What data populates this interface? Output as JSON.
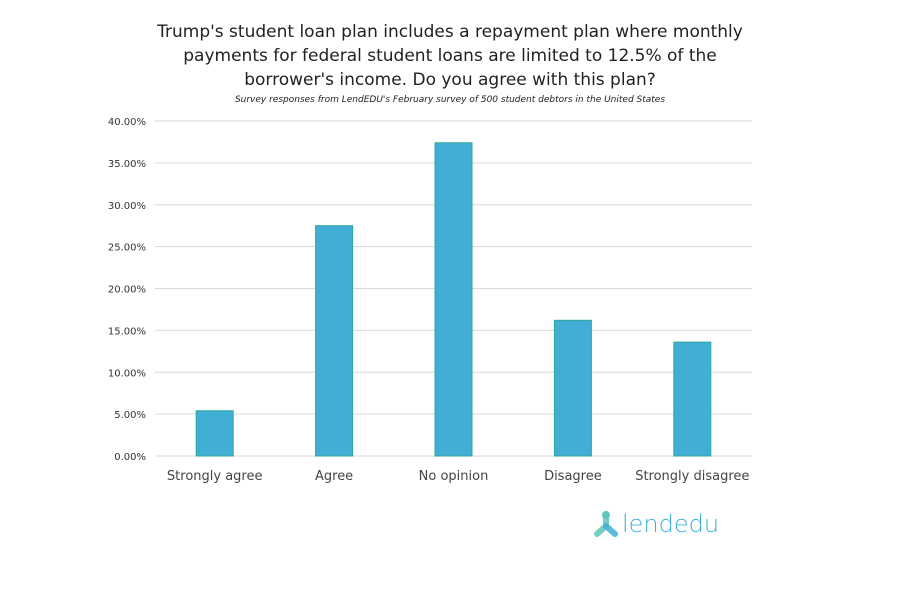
{
  "chart_data": {
    "type": "bar",
    "title": "Trump's student loan plan includes a repayment plan where monthly payments for federal student loans are limited to 12.5% of the borrower's income. Do you agree with this plan?",
    "subtitle": "Survey responses from LendEDU's February survey of 500 student debtors in the United States",
    "categories": [
      "Strongly agree",
      "Agree",
      "No opinion",
      "Disagree",
      "Strongly disagree"
    ],
    "values": [
      5.4,
      27.5,
      37.4,
      16.2,
      13.6
    ],
    "ylim": [
      0,
      40
    ],
    "yticks": [
      "0.00%",
      "5.00%",
      "10.00%",
      "15.00%",
      "20.00%",
      "25.00%",
      "30.00%",
      "35.00%",
      "40.00%"
    ],
    "grid": true,
    "xlabel": "",
    "ylabel": "",
    "bar_color": "#41aed6",
    "bar_edge_color": "#2ea89a"
  },
  "logo": {
    "text": "lendedu",
    "color": "#40b0d8"
  }
}
